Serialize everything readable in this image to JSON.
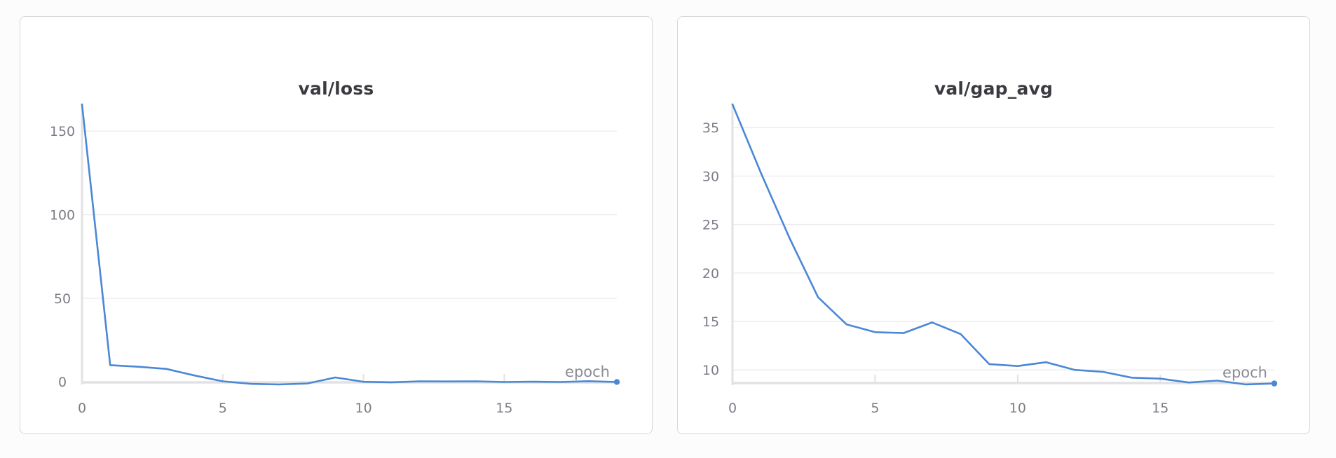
{
  "colors": {
    "line": "#4a88d6",
    "grid": "#ececef",
    "axis": "#e2e2e5",
    "text": "#7c7e86",
    "title": "#3a3b40"
  },
  "chart_data": [
    {
      "type": "line",
      "title": "val/loss",
      "xlabel": "epoch",
      "ylabel": "",
      "xlim": [
        0,
        19
      ],
      "ylim": [
        -2,
        166
      ],
      "xticks": [
        0,
        5,
        10,
        15
      ],
      "yticks": [
        0,
        50,
        100,
        150
      ],
      "grid": true,
      "series": [
        {
          "x": [
            0,
            1,
            2,
            3,
            4,
            5,
            6,
            7,
            8,
            9,
            10,
            11,
            12,
            13,
            14,
            15,
            16,
            17,
            18,
            19
          ],
          "y": [
            166,
            10,
            9,
            7.7,
            3.8,
            0.3,
            -1.2,
            -1.6,
            -1,
            2.6,
            0,
            -0.3,
            0.3,
            0.2,
            0.3,
            -0.1,
            0.1,
            -0.1,
            0.4,
            -0.1
          ]
        }
      ]
    },
    {
      "type": "line",
      "title": "val/gap_avg",
      "xlabel": "epoch",
      "ylabel": "",
      "xlim": [
        0,
        19
      ],
      "ylim": [
        8.5,
        37.4
      ],
      "xticks": [
        0,
        5,
        10,
        15
      ],
      "yticks": [
        10,
        15,
        20,
        25,
        30,
        35
      ],
      "grid": true,
      "series": [
        {
          "x": [
            0,
            1,
            2,
            3,
            4,
            5,
            6,
            7,
            8,
            9,
            10,
            11,
            12,
            13,
            14,
            15,
            16,
            17,
            18,
            19
          ],
          "y": [
            37.4,
            30.3,
            23.6,
            17.5,
            14.7,
            13.9,
            13.8,
            14.9,
            13.7,
            10.6,
            10.4,
            10.8,
            10,
            9.8,
            9.2,
            9.1,
            8.7,
            8.9,
            8.5,
            8.6
          ]
        }
      ]
    }
  ]
}
